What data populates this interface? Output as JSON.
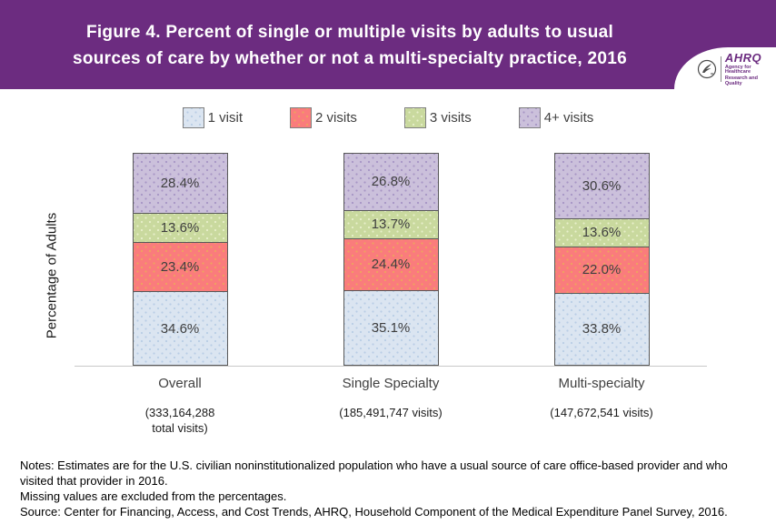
{
  "header": {
    "title_line1": "Figure 4. Percent of single or multiple visits by adults to usual",
    "title_line2": "sources of care by whether or not a multi-specialty practice, 2016",
    "banner_color": "#6c2c80",
    "logo": {
      "name": "AHRQ",
      "tagline_line1": "Agency for Healthcare",
      "tagline_line2": "Research and Quality"
    }
  },
  "chart_data": {
    "type": "bar",
    "stacked": true,
    "title": "Percent of single or multiple visits by adults to usual sources of care by whether or not a multi-specialty practice, 2016",
    "categories": [
      "Overall",
      "Single Specialty",
      "Multi-specialty"
    ],
    "category_sublabels": [
      [
        "(333,164,288",
        "total visits)"
      ],
      [
        "(185,491,747 visits)"
      ],
      [
        "(147,672,541 visits)"
      ]
    ],
    "series": [
      {
        "name": "1 visit",
        "color": "#dbe5f1",
        "dot_color": "#b9cde5",
        "values": [
          34.6,
          35.1,
          33.8
        ]
      },
      {
        "name": "2 visits",
        "color": "#fa7c7c",
        "dot_color": "#eda45e",
        "values": [
          23.4,
          24.4,
          22.0
        ]
      },
      {
        "name": "3 visits",
        "color": "#c9d99e",
        "dot_color": "#e7efca",
        "values": [
          13.6,
          13.7,
          13.6
        ]
      },
      {
        "name": "4+ visits",
        "color": "#cbc0db",
        "dot_color": "#a795c5",
        "values": [
          28.4,
          26.8,
          30.6
        ]
      }
    ],
    "xlabel": "",
    "ylabel": "Percentage of Adults",
    "ylim": [
      0,
      100
    ],
    "value_suffix": "%",
    "grid": false,
    "legend_position": "top"
  },
  "notes": {
    "line1": "Notes: Estimates are for the U.S. civilian noninstitutionalized population who have a usual source of care office-based provider and who visited that provider in 2016.",
    "line2": "Missing values are excluded from the percentages.",
    "line3": "Source: Center for Financing, Access, and Cost Trends, AHRQ, Household Component of the Medical Expenditure Panel Survey, 2016."
  }
}
